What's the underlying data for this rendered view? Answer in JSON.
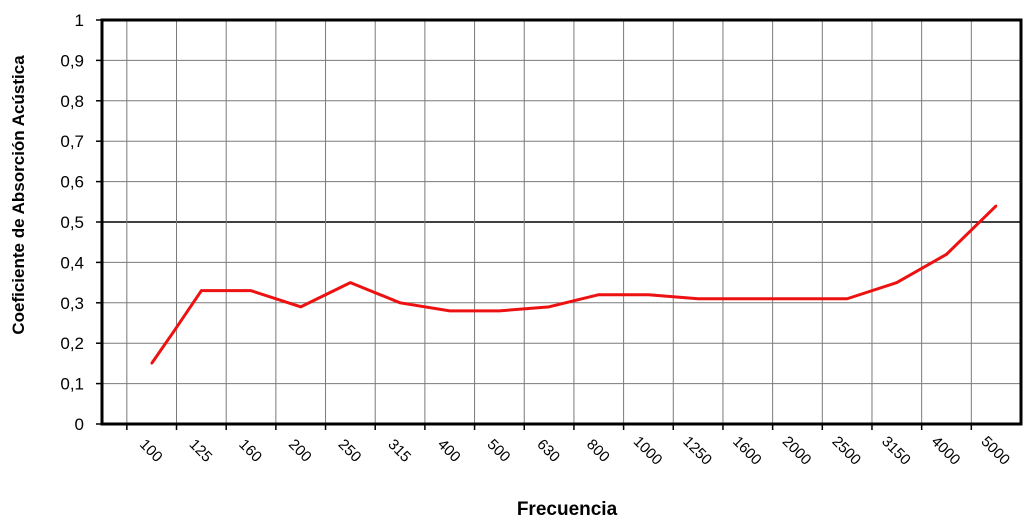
{
  "chart_data": {
    "type": "line",
    "xlabel": "Frecuencia",
    "ylabel": "Coeficiente de Absorción Acústica",
    "x": [
      "100",
      "125",
      "160",
      "200",
      "250",
      "315",
      "400",
      "500",
      "630",
      "800",
      "1000",
      "1250",
      "1600",
      "2000",
      "2500",
      "3150",
      "4000",
      "5000"
    ],
    "y_tick_labels": [
      "0",
      "0,1",
      "0,2",
      "0,3",
      "0,4",
      "0,5",
      "0,6",
      "0,7",
      "0,8",
      "0,9",
      "1"
    ],
    "ylim": [
      0,
      1
    ],
    "grid": true,
    "series": [
      {
        "color": "#ee1111",
        "points": [
          {
            "x": "100",
            "y": 0.15
          },
          {
            "x": "100",
            "y": 0.23
          },
          {
            "x": "125",
            "y": 0.33
          },
          {
            "x": "160",
            "y": 0.33
          },
          {
            "x": "200",
            "y": 0.29
          },
          {
            "x": "250",
            "y": 0.35
          },
          {
            "x": "315",
            "y": 0.3
          },
          {
            "x": "400",
            "y": 0.28
          },
          {
            "x": "500",
            "y": 0.28
          },
          {
            "x": "630",
            "y": 0.29
          },
          {
            "x": "800",
            "y": 0.32
          },
          {
            "x": "1000",
            "y": 0.32
          },
          {
            "x": "1250",
            "y": 0.31
          },
          {
            "x": "1600",
            "y": 0.31
          },
          {
            "x": "2000",
            "y": 0.31
          },
          {
            "x": "2500",
            "y": 0.31
          },
          {
            "x": "3150",
            "y": 0.35
          },
          {
            "x": "4000",
            "y": 0.42
          },
          {
            "x": "5000",
            "y": 0.54
          }
        ]
      }
    ]
  }
}
